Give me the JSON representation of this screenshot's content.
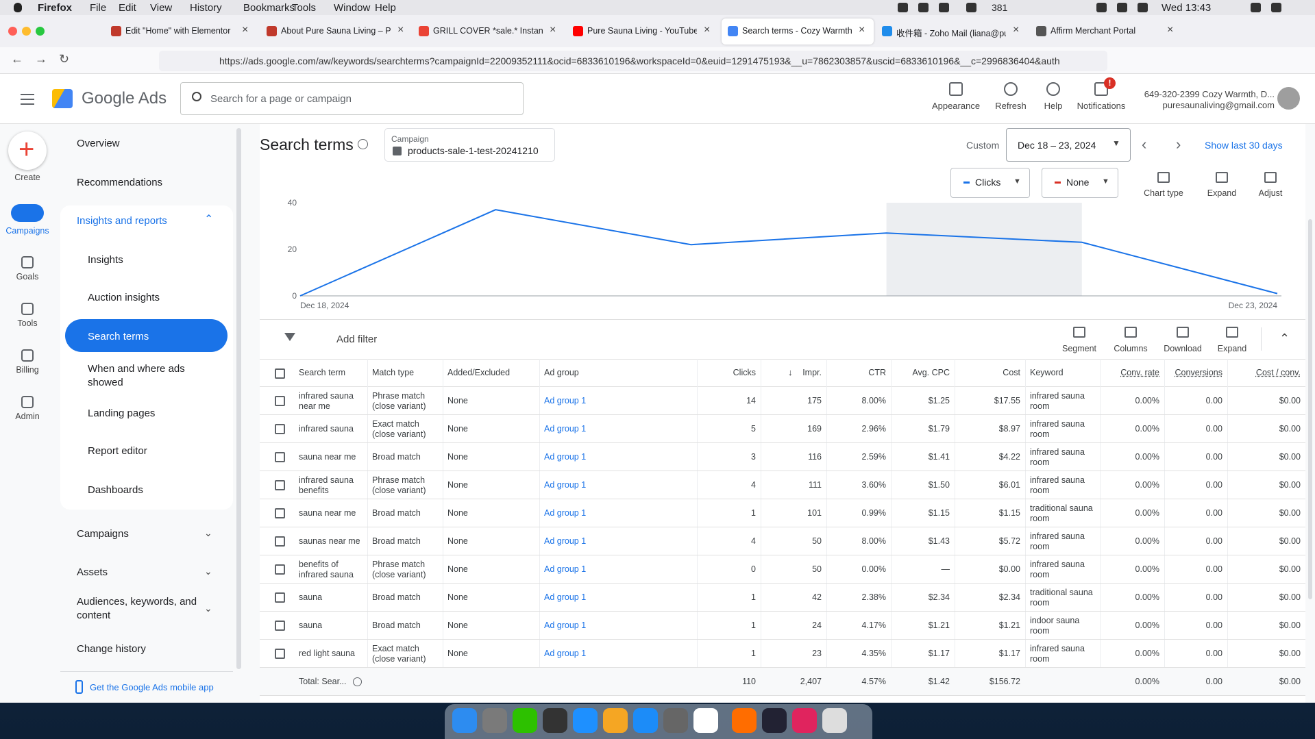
{
  "menu_bar": {
    "app": "Firefox",
    "items": [
      "File",
      "Edit",
      "View",
      "History",
      "Bookmarks",
      "Tools",
      "Window",
      "Help"
    ],
    "battery": "381",
    "clock": "Wed 13:43"
  },
  "tabs": [
    "Edit \"Home\" with Elementor",
    "About Pure Sauna Living – Pure",
    "GRILL COVER *sale.* Instant sav",
    "Pure Sauna Living - YouTube",
    "Search terms - Cozy Warmth, D",
    "收件箱 - Zoho Mail (liana@pures",
    "Affirm Merchant Portal"
  ],
  "url": "https://ads.google.com/aw/keywords/searchterms?campaignId=22009352111&ocid=6833610196&workspaceId=0&euid=1291475193&__u=7862303857&uscid=6833610196&__c=2996836404&auth",
  "header": {
    "logo": "Google Ads",
    "search_placeholder": "Search for a page or campaign",
    "actions": [
      "Appearance",
      "Refresh",
      "Help",
      "Notifications"
    ],
    "badge": "!",
    "account_name": "649-320-2399 Cozy Warmth, D...",
    "account_email": "puresaunaliving@gmail.com"
  },
  "rail": [
    "Create",
    "Campaigns",
    "Goals",
    "Tools",
    "Billing",
    "Admin"
  ],
  "nav": {
    "top": [
      "Overview",
      "Recommendations"
    ],
    "section": "Insights and reports",
    "sub": [
      "Insights",
      "Auction insights",
      "Search terms",
      "When and where ads showed",
      "Landing pages",
      "Report editor",
      "Dashboards"
    ],
    "bottom": [
      "Campaigns",
      "Assets",
      "Audiences, keywords, and content",
      "Change history"
    ],
    "app_link": "Get the Google Ads mobile app"
  },
  "page": {
    "title": "Search terms",
    "campaign_label": "Campaign",
    "campaign_name": "products-sale-1-test-20241210",
    "custom": "Custom",
    "date_range": "Dec 18 – 23, 2024",
    "show_last": "Show last 30 days"
  },
  "chart_toolbar": {
    "metric1": "Clicks",
    "metric2": "None",
    "actions": [
      "Chart type",
      "Expand",
      "Adjust"
    ]
  },
  "chart_data": {
    "type": "line",
    "categories": [
      "Dec 18, 2024",
      null,
      null,
      null,
      null,
      "Dec 23, 2024"
    ],
    "series": [
      {
        "name": "Clicks",
        "color": "#1a73e8",
        "values": [
          0,
          37,
          22,
          27,
          23,
          1
        ]
      }
    ],
    "ylim": [
      0,
      40
    ],
    "yticks": [
      0,
      20,
      40
    ],
    "grid": false
  },
  "table": {
    "add_filter": "Add filter",
    "tools": [
      "Segment",
      "Columns",
      "Download",
      "Expand"
    ],
    "columns": [
      "Search term",
      "Match type",
      "Added/Excluded",
      "Ad group",
      "Clicks",
      "Impr.",
      "CTR",
      "Avg. CPC",
      "Cost",
      "Keyword",
      "Conv. rate",
      "Conversions",
      "Cost / conv."
    ],
    "rows": [
      [
        "infrared sauna near me",
        "Phrase match (close variant)",
        "None",
        "Ad group 1",
        "14",
        "175",
        "8.00%",
        "$1.25",
        "$17.55",
        "infrared sauna room",
        "0.00%",
        "0.00",
        "$0.00"
      ],
      [
        "infrared sauna",
        "Exact match (close variant)",
        "None",
        "Ad group 1",
        "5",
        "169",
        "2.96%",
        "$1.79",
        "$8.97",
        "infrared sauna room",
        "0.00%",
        "0.00",
        "$0.00"
      ],
      [
        "sauna near me",
        "Broad match",
        "None",
        "Ad group 1",
        "3",
        "116",
        "2.59%",
        "$1.41",
        "$4.22",
        "infrared sauna room",
        "0.00%",
        "0.00",
        "$0.00"
      ],
      [
        "infrared sauna benefits",
        "Phrase match (close variant)",
        "None",
        "Ad group 1",
        "4",
        "111",
        "3.60%",
        "$1.50",
        "$6.01",
        "infrared sauna room",
        "0.00%",
        "0.00",
        "$0.00"
      ],
      [
        "sauna near me",
        "Broad match",
        "None",
        "Ad group 1",
        "1",
        "101",
        "0.99%",
        "$1.15",
        "$1.15",
        "traditional sauna room",
        "0.00%",
        "0.00",
        "$0.00"
      ],
      [
        "saunas near me",
        "Broad match",
        "None",
        "Ad group 1",
        "4",
        "50",
        "8.00%",
        "$1.43",
        "$5.72",
        "infrared sauna room",
        "0.00%",
        "0.00",
        "$0.00"
      ],
      [
        "benefits of infrared sauna",
        "Phrase match (close variant)",
        "None",
        "Ad group 1",
        "0",
        "50",
        "0.00%",
        "—",
        "$0.00",
        "infrared sauna room",
        "0.00%",
        "0.00",
        "$0.00"
      ],
      [
        "sauna",
        "Broad match",
        "None",
        "Ad group 1",
        "1",
        "42",
        "2.38%",
        "$2.34",
        "$2.34",
        "traditional sauna room",
        "0.00%",
        "0.00",
        "$0.00"
      ],
      [
        "sauna",
        "Broad match",
        "None",
        "Ad group 1",
        "1",
        "24",
        "4.17%",
        "$1.21",
        "$1.21",
        "indoor sauna room",
        "0.00%",
        "0.00",
        "$0.00"
      ],
      [
        "red light sauna",
        "Exact match (close variant)",
        "None",
        "Ad group 1",
        "1",
        "23",
        "4.35%",
        "$1.17",
        "$1.17",
        "infrared sauna room",
        "0.00%",
        "0.00",
        "$0.00"
      ]
    ],
    "total": [
      "Total: Sear...",
      null,
      null,
      null,
      "110",
      "2,407",
      "4.57%",
      "$1.42",
      "$156.72",
      null,
      "0.00%",
      "0.00",
      "$0.00"
    ]
  }
}
